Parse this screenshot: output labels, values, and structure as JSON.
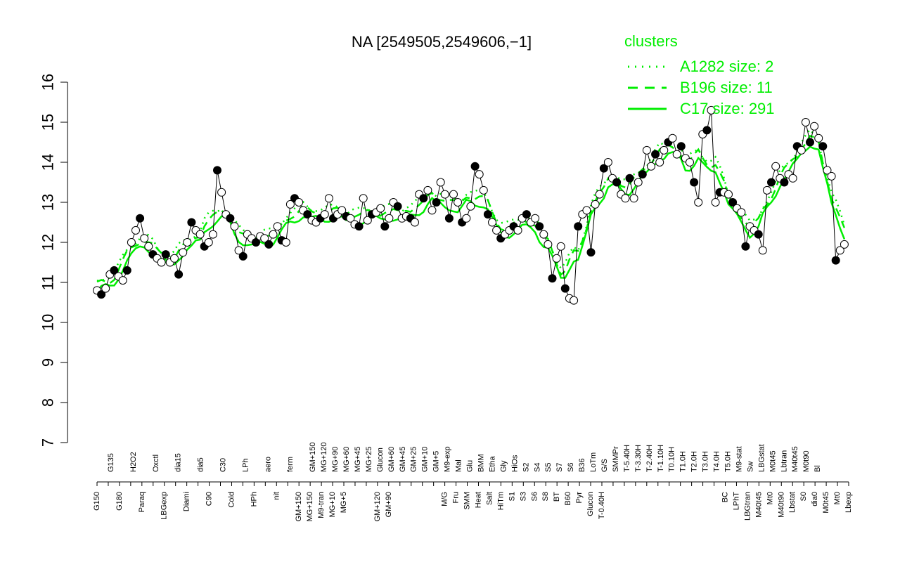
{
  "colors": {
    "cluster": "#00ee00",
    "axis": "#000000",
    "points_line": "#000000"
  },
  "chart_data": {
    "type": "line",
    "title": "NA [2549505,2549606,−1]",
    "xlabel": "",
    "ylabel": "",
    "ylim": [
      7,
      16
    ],
    "y_ticks": [
      "7",
      "8",
      "9",
      "10",
      "11",
      "12",
      "13",
      "14",
      "15",
      "16"
    ],
    "grid": false,
    "legend": {
      "title": "clusters",
      "placement": "top-right",
      "entries": [
        {
          "label": "A1282 size: 2",
          "style": "dotted"
        },
        {
          "label": "B196 size: 11",
          "style": "dashed"
        },
        {
          "label": "C17 size: 291",
          "style": "solid"
        }
      ]
    },
    "x_labels_top": [
      "G135",
      "H2O2",
      "Oxctl",
      "dia15",
      "dia5",
      "C30",
      "LPh",
      "aero",
      "ferm",
      "GM+150",
      "MG+120",
      "MG+90",
      "MG+60",
      "MG+45",
      "MG+25",
      "Glucon",
      "GM+60",
      "GM+45",
      "GM+25",
      "GM+10",
      "GM+5",
      "M9-exp",
      "Mal",
      "Glu",
      "BMM",
      "Etha",
      "Gly",
      "HiOs",
      "S2",
      "S4",
      "S5",
      "S7",
      "S6",
      "B36",
      "LoTm",
      "G/S",
      "SMMPr",
      "T-5.40H",
      "T-3.30H",
      "T-2.40H",
      "T-1.10H",
      "T0.10H",
      "T1.0H",
      "T2.0H",
      "T3.0H",
      "T4.0H",
      "T5.0H",
      "M9-stat",
      "Sw",
      "LBGstat",
      "M0t45",
      "Lbtran",
      "M40t45",
      "M0t90",
      "Bl"
    ],
    "x_labels_bottom": [
      "G150",
      "G180",
      "Paraq",
      "LBGexp",
      "Diami",
      "C90",
      "Cold",
      "HPh",
      "nit",
      "GM+150",
      "MG+150",
      "M9-tran",
      "MG+10",
      "MG+5",
      "GM+120",
      "GM+90",
      "M/G",
      "Fru",
      "SMM",
      "Heat",
      "Salt",
      "HiTm",
      "S1",
      "S3",
      "S6",
      "S8",
      "BT",
      "B60",
      "Pyr",
      "Glucon",
      "T-0.40H",
      "BC",
      "LPhT",
      "LBGtran",
      "M40t45",
      "Mt0",
      "M40t90",
      "Lbstat",
      "S0",
      "dia0",
      "M0t45",
      "Mt0",
      "Lbexp"
    ],
    "x_label_rows": [
      {
        "x": 0.0,
        "top": "",
        "bottom": "G150"
      },
      {
        "x": 1.0,
        "top": "G135",
        "bottom": ""
      },
      {
        "x": 2.0,
        "top": "",
        "bottom": "G180"
      },
      {
        "x": 3.0,
        "top": "H2O2",
        "bottom": ""
      },
      {
        "x": 4.0,
        "top": "",
        "bottom": "Paraq"
      },
      {
        "x": 5.0,
        "top": "Oxctl",
        "bottom": ""
      },
      {
        "x": 6.0,
        "top": "",
        "bottom": "LBGexp"
      },
      {
        "x": 7.0,
        "top": "dia15",
        "bottom": ""
      },
      {
        "x": 8.0,
        "top": "",
        "bottom": "Diami"
      },
      {
        "x": 9.0,
        "top": "dia5",
        "bottom": ""
      },
      {
        "x": 10.0,
        "top": "",
        "bottom": "C90"
      },
      {
        "x": 11.0,
        "top": "C30",
        "bottom": ""
      },
      {
        "x": 12.0,
        "top": "",
        "bottom": "Cold"
      },
      {
        "x": 13.0,
        "top": "LPh",
        "bottom": ""
      },
      {
        "x": 14.0,
        "top": "",
        "bottom": "HPh"
      },
      {
        "x": 15.0,
        "top": "aero",
        "bottom": ""
      },
      {
        "x": 16.0,
        "top": "",
        "bottom": "nit"
      },
      {
        "x": 17.0,
        "top": "ferm",
        "bottom": ""
      },
      {
        "x": 18.0,
        "top": "",
        "bottom": "GM+150"
      },
      {
        "x": 19.0,
        "top": "GM+150",
        "bottom": "MG+150"
      },
      {
        "x": 20.0,
        "top": "MG+120",
        "bottom": "M9-tran"
      },
      {
        "x": 21.0,
        "top": "MG+90",
        "bottom": "MG+10"
      },
      {
        "x": 22.0,
        "top": "MG+60",
        "bottom": "MG+5"
      },
      {
        "x": 23.0,
        "top": "MG+45",
        "bottom": ""
      },
      {
        "x": 24.0,
        "top": "MG+25",
        "bottom": ""
      },
      {
        "x": 25.0,
        "top": "Glucon",
        "bottom": "GM+120"
      },
      {
        "x": 26.0,
        "top": "GM+60",
        "bottom": "GM+90"
      },
      {
        "x": 27.0,
        "top": "GM+45",
        "bottom": ""
      },
      {
        "x": 28.0,
        "top": "GM+25",
        "bottom": ""
      },
      {
        "x": 29.0,
        "top": "GM+10",
        "bottom": ""
      },
      {
        "x": 30.0,
        "top": "GM+5",
        "bottom": ""
      },
      {
        "x": 31.0,
        "top": "M9-exp",
        "bottom": "M/G"
      },
      {
        "x": 32.0,
        "top": "Mal",
        "bottom": "Fru"
      },
      {
        "x": 33.0,
        "top": "Glu",
        "bottom": "SMM"
      },
      {
        "x": 34.0,
        "top": "BMM",
        "bottom": "Heat"
      },
      {
        "x": 35.0,
        "top": "Etha",
        "bottom": "Salt"
      },
      {
        "x": 36.0,
        "top": "Gly",
        "bottom": "HiTm"
      },
      {
        "x": 37.0,
        "top": "HiOs",
        "bottom": "S1"
      },
      {
        "x": 38.0,
        "top": "S2",
        "bottom": "S3"
      },
      {
        "x": 39.0,
        "top": "S4",
        "bottom": "S6"
      },
      {
        "x": 40.0,
        "top": "S5",
        "bottom": "S8"
      },
      {
        "x": 41.0,
        "top": "S7",
        "bottom": "BT"
      },
      {
        "x": 42.0,
        "top": "S6",
        "bottom": "B60"
      },
      {
        "x": 43.0,
        "top": "B36",
        "bottom": "Pyr"
      },
      {
        "x": 44.0,
        "top": "LoTm",
        "bottom": "Glucon"
      },
      {
        "x": 45.0,
        "top": "G/S",
        "bottom": "T-0.40H"
      },
      {
        "x": 46.0,
        "top": "SMMPr",
        "bottom": ""
      },
      {
        "x": 47.0,
        "top": "T-5.40H",
        "bottom": ""
      },
      {
        "x": 48.0,
        "top": "T-3.30H",
        "bottom": ""
      },
      {
        "x": 49.0,
        "top": "T-2.40H",
        "bottom": ""
      },
      {
        "x": 50.0,
        "top": "T-1.10H",
        "bottom": ""
      },
      {
        "x": 51.0,
        "top": "T0.10H",
        "bottom": ""
      },
      {
        "x": 52.0,
        "top": "T1.0H",
        "bottom": ""
      },
      {
        "x": 53.0,
        "top": "T2.0H",
        "bottom": ""
      },
      {
        "x": 54.0,
        "top": "T3.0H",
        "bottom": ""
      },
      {
        "x": 55.0,
        "top": "T4.0H",
        "bottom": ""
      },
      {
        "x": 56.0,
        "top": "T5.0H",
        "bottom": "BC"
      },
      {
        "x": 57.0,
        "top": "M9-stat",
        "bottom": "LPhT"
      },
      {
        "x": 58.0,
        "top": "Sw",
        "bottom": "LBGtran"
      },
      {
        "x": 59.0,
        "top": "LBGstat",
        "bottom": "M40t45"
      },
      {
        "x": 60.0,
        "top": "M0t45",
        "bottom": "Mt0"
      },
      {
        "x": 61.0,
        "top": "Lbtran",
        "bottom": "M40t90"
      },
      {
        "x": 62.0,
        "top": "M40t45",
        "bottom": "Lbstat"
      },
      {
        "x": 63.0,
        "top": "M0t90",
        "bottom": "S0"
      },
      {
        "x": 64.0,
        "top": "Bl",
        "bottom": "dia0"
      },
      {
        "x": 65.0,
        "top": "",
        "bottom": "M0t45"
      },
      {
        "x": 66.0,
        "top": "",
        "bottom": "Mt0"
      },
      {
        "x": 67.0,
        "top": "",
        "bottom": "Lbexp"
      }
    ],
    "x_range": [
      0,
      175
    ],
    "series": [
      {
        "style": "points-line",
        "points": [
          [
            0,
            10.8
          ],
          [
            1,
            10.7
          ],
          [
            2,
            10.85
          ],
          [
            3,
            11.2
          ],
          [
            4,
            11.3
          ],
          [
            5,
            11.15
          ],
          [
            6,
            11.05
          ],
          [
            7,
            11.3
          ],
          [
            8,
            12.0
          ],
          [
            9,
            12.3
          ],
          [
            10,
            12.6
          ],
          [
            11,
            12.1
          ],
          [
            12,
            11.9
          ],
          [
            13,
            11.7
          ],
          [
            14,
            11.6
          ],
          [
            15,
            11.5
          ],
          [
            16,
            11.7
          ],
          [
            17,
            11.5
          ],
          [
            18,
            11.6
          ],
          [
            19,
            11.2
          ],
          [
            20,
            11.75
          ],
          [
            21,
            12.0
          ],
          [
            22,
            12.5
          ],
          [
            23,
            12.3
          ],
          [
            24,
            12.2
          ],
          [
            25,
            11.9
          ],
          [
            26,
            12.0
          ],
          [
            27,
            12.2
          ],
          [
            28,
            13.8
          ],
          [
            29,
            13.25
          ],
          [
            30,
            12.7
          ],
          [
            31,
            12.6
          ],
          [
            32,
            12.4
          ],
          [
            33,
            11.8
          ],
          [
            34,
            11.65
          ],
          [
            35,
            12.2
          ],
          [
            36,
            12.1
          ],
          [
            37,
            12.0
          ],
          [
            38,
            12.15
          ],
          [
            39,
            12.1
          ],
          [
            40,
            11.95
          ],
          [
            41,
            12.2
          ],
          [
            42,
            12.4
          ],
          [
            43,
            12.05
          ],
          [
            44,
            12.0
          ],
          [
            45,
            12.95
          ],
          [
            46,
            13.1
          ],
          [
            47,
            13.0
          ],
          [
            48,
            12.8
          ],
          [
            49,
            12.7
          ],
          [
            50,
            12.55
          ],
          [
            51,
            12.5
          ],
          [
            52,
            12.6
          ],
          [
            53,
            12.7
          ],
          [
            54,
            13.1
          ],
          [
            55,
            12.6
          ],
          [
            56,
            12.7
          ],
          [
            57,
            12.8
          ],
          [
            58,
            12.65
          ],
          [
            59,
            12.6
          ],
          [
            60,
            12.45
          ],
          [
            61,
            12.4
          ],
          [
            62,
            13.1
          ],
          [
            63,
            12.55
          ],
          [
            64,
            12.7
          ],
          [
            65,
            12.75
          ],
          [
            66,
            12.85
          ],
          [
            67,
            12.4
          ],
          [
            68,
            12.6
          ],
          [
            69,
            13.0
          ],
          [
            70,
            12.9
          ],
          [
            71,
            12.6
          ],
          [
            72,
            12.65
          ],
          [
            73,
            12.6
          ],
          [
            74,
            12.5
          ],
          [
            75,
            13.2
          ],
          [
            76,
            13.1
          ],
          [
            77,
            13.3
          ],
          [
            78,
            12.8
          ],
          [
            79,
            13.0
          ],
          [
            80,
            13.5
          ],
          [
            81,
            13.2
          ],
          [
            82,
            12.6
          ],
          [
            83,
            13.2
          ],
          [
            84,
            13.0
          ],
          [
            85,
            12.5
          ],
          [
            86,
            12.6
          ],
          [
            87,
            12.9
          ],
          [
            88,
            13.9
          ],
          [
            89,
            13.7
          ],
          [
            90,
            13.3
          ],
          [
            91,
            12.7
          ],
          [
            92,
            12.5
          ],
          [
            93,
            12.3
          ],
          [
            94,
            12.1
          ],
          [
            95,
            12.2
          ],
          [
            96,
            12.3
          ],
          [
            97,
            12.4
          ],
          [
            98,
            12.3
          ],
          [
            99,
            12.6
          ],
          [
            100,
            12.7
          ],
          [
            101,
            12.5
          ],
          [
            102,
            12.6
          ],
          [
            103,
            12.4
          ],
          [
            104,
            12.2
          ],
          [
            105,
            11.95
          ],
          [
            106,
            11.1
          ],
          [
            107,
            11.6
          ],
          [
            108,
            11.9
          ],
          [
            109,
            10.85
          ],
          [
            110,
            10.6
          ],
          [
            111,
            10.55
          ],
          [
            112,
            12.4
          ],
          [
            113,
            12.7
          ],
          [
            114,
            12.8
          ],
          [
            115,
            11.75
          ],
          [
            116,
            12.95
          ],
          [
            117,
            13.2
          ],
          [
            118,
            13.85
          ],
          [
            119,
            14.0
          ],
          [
            120,
            13.6
          ],
          [
            121,
            13.5
          ],
          [
            122,
            13.2
          ],
          [
            123,
            13.1
          ],
          [
            124,
            13.6
          ],
          [
            125,
            13.1
          ],
          [
            126,
            13.5
          ],
          [
            127,
            13.7
          ],
          [
            128,
            14.3
          ],
          [
            129,
            13.9
          ],
          [
            130,
            14.2
          ],
          [
            131,
            14.0
          ],
          [
            132,
            14.3
          ],
          [
            133,
            14.5
          ],
          [
            134,
            14.6
          ],
          [
            135,
            14.2
          ],
          [
            136,
            14.4
          ],
          [
            137,
            14.1
          ],
          [
            138,
            14.0
          ],
          [
            139,
            13.5
          ],
          [
            140,
            13.0
          ],
          [
            141,
            14.7
          ],
          [
            142,
            14.8
          ],
          [
            143,
            15.3
          ],
          [
            144,
            13.0
          ],
          [
            145,
            13.25
          ],
          [
            146,
            13.25
          ],
          [
            147,
            13.2
          ],
          [
            148,
            13.0
          ],
          [
            149,
            12.85
          ],
          [
            150,
            12.75
          ],
          [
            151,
            11.9
          ],
          [
            152,
            12.4
          ],
          [
            153,
            12.3
          ],
          [
            154,
            12.2
          ],
          [
            155,
            11.8
          ],
          [
            156,
            13.3
          ],
          [
            157,
            13.5
          ],
          [
            158,
            13.9
          ],
          [
            159,
            13.6
          ],
          [
            160,
            13.5
          ],
          [
            161,
            13.7
          ],
          [
            162,
            13.6
          ],
          [
            163,
            14.4
          ],
          [
            164,
            14.3
          ],
          [
            165,
            15.0
          ],
          [
            166,
            14.5
          ],
          [
            167,
            14.9
          ],
          [
            168,
            14.6
          ],
          [
            169,
            14.4
          ],
          [
            170,
            13.8
          ],
          [
            171,
            13.65
          ],
          [
            172,
            11.55
          ],
          [
            173,
            11.8
          ],
          [
            174,
            11.95
          ]
        ]
      }
    ]
  }
}
